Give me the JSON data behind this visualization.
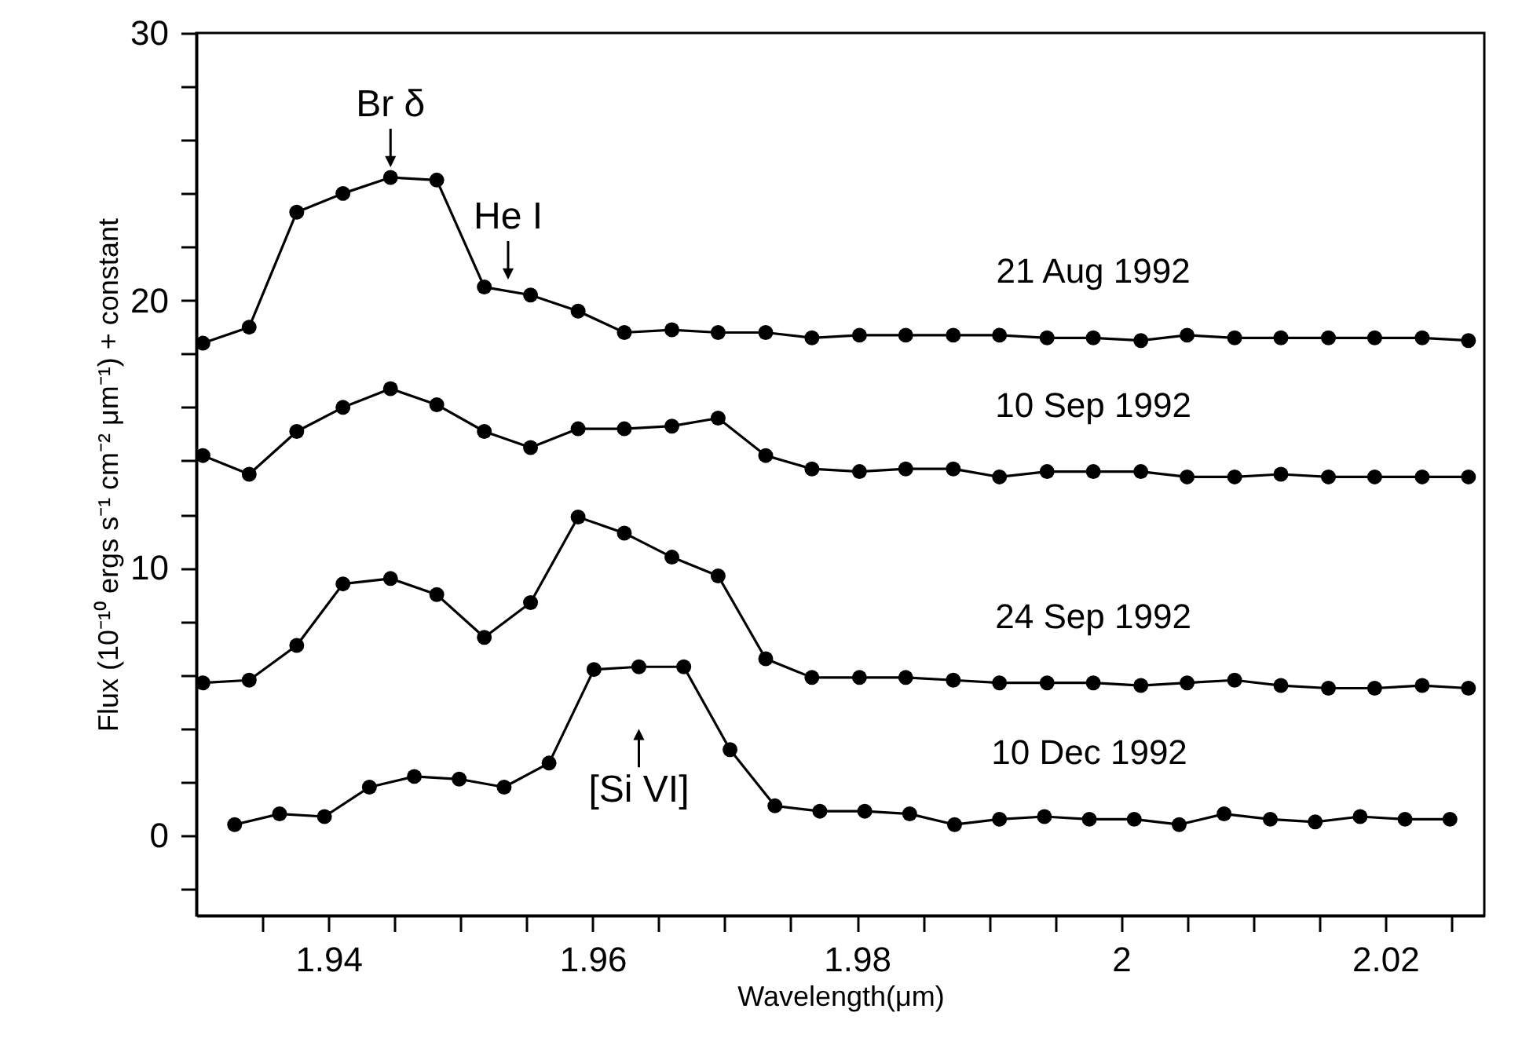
{
  "chart_data": {
    "type": "line",
    "xlabel": "Wavelength(μm)",
    "ylabel": "Flux (10⁻¹⁰ ergs s⁻¹ cm⁻² μm⁻¹) + constant",
    "x": [
      1.9305,
      1.934,
      1.9376,
      1.9411,
      1.9447,
      1.9482,
      1.9518,
      1.9553,
      1.9589,
      1.9624,
      1.966,
      1.9695,
      1.9731,
      1.9766,
      1.9802,
      1.9837,
      1.9873,
      1.9908,
      1.9944,
      1.9979,
      2.0015,
      2.005,
      2.0086,
      2.0121,
      2.0157,
      2.0192,
      2.0228,
      2.0263
    ],
    "series": [
      {
        "name": "21 Aug 1992",
        "color": "#000000",
        "values": [
          18.4,
          19.0,
          23.3,
          24.0,
          24.6,
          24.5,
          20.5,
          20.2,
          19.6,
          18.8,
          18.9,
          18.8,
          18.8,
          18.6,
          18.7,
          18.7,
          18.7,
          18.7,
          18.6,
          18.6,
          18.5,
          18.7,
          18.6,
          18.6,
          18.6,
          18.6,
          18.6,
          18.5
        ]
      },
      {
        "name": "10 Sep 1992",
        "color": "#000000",
        "values": [
          14.2,
          13.5,
          15.1,
          16.0,
          16.7,
          16.1,
          15.1,
          14.5,
          15.2,
          15.2,
          15.3,
          15.6,
          14.2,
          13.7,
          13.6,
          13.7,
          13.7,
          13.4,
          13.6,
          13.6,
          13.6,
          13.4,
          13.4,
          13.5,
          13.4,
          13.4,
          13.4,
          13.4
        ]
      },
      {
        "name": "24 Sep 1992",
        "color": "#000000",
        "values": [
          5.7,
          5.8,
          7.1,
          9.4,
          9.6,
          9.0,
          7.4,
          8.7,
          11.9,
          11.3,
          10.4,
          9.7,
          6.6,
          5.9,
          5.9,
          5.9,
          5.8,
          5.7,
          5.7,
          5.7,
          5.6,
          5.7,
          5.8,
          5.6,
          5.5,
          5.5,
          5.6,
          5.5
        ]
      },
      {
        "name": "10 Dec 1992",
        "color": "#000000",
        "x": [
          1.9329,
          1.9363,
          1.9397,
          1.9431,
          1.9465,
          1.9499,
          1.9533,
          1.9567,
          1.9601,
          1.9635,
          1.9669,
          1.9704,
          1.9738,
          1.9772,
          1.9806,
          1.984,
          1.9874,
          1.9908,
          1.9942,
          1.9976,
          2.001,
          2.0044,
          2.0078,
          2.0113,
          2.0147,
          2.0181,
          2.0215,
          2.0249
        ],
        "values": [
          0.4,
          0.8,
          0.7,
          1.8,
          2.2,
          2.1,
          1.8,
          2.7,
          6.2,
          6.3,
          6.3,
          3.2,
          1.1,
          0.9,
          0.9,
          0.8,
          0.4,
          0.6,
          0.7,
          0.6,
          0.6,
          0.4,
          0.8,
          0.6,
          0.5,
          0.7,
          0.6,
          0.6
        ]
      }
    ],
    "annotations": [
      {
        "text": "Br δ",
        "x": 1.9447,
        "y": 24.6
      },
      {
        "text": "He I",
        "x": 1.9536,
        "y": 20.4
      },
      {
        "text": "[Si VI]",
        "x": 1.9635,
        "y": 6.3
      }
    ],
    "xlim": [
      1.93,
      2.0275
    ],
    "xticks": [
      {
        "value": 1.935,
        "label": null
      },
      1.94,
      {
        "value": 1.945,
        "label": null
      },
      {
        "value": 1.95,
        "label": null
      },
      {
        "value": 1.955,
        "label": null
      },
      1.96,
      {
        "value": 1.965,
        "label": null
      },
      {
        "value": 1.97,
        "label": null
      },
      {
        "value": 1.975,
        "label": null
      },
      1.98,
      {
        "value": 1.985,
        "label": null
      },
      {
        "value": 1.99,
        "label": null
      },
      {
        "value": 1.995,
        "label": null
      },
      2,
      {
        "value": 2.005,
        "label": null
      },
      {
        "value": 2.01,
        "label": null
      },
      {
        "value": 2.015,
        "label": null
      },
      2.02,
      {
        "value": 2.025,
        "label": null
      }
    ],
    "ylim": [
      -3,
      30
    ],
    "yticks": [
      {
        "value": -2,
        "label": null
      },
      0,
      {
        "value": 2,
        "label": null
      },
      {
        "value": 4,
        "label": null
      },
      {
        "value": 6,
        "label": null
      },
      {
        "value": 8,
        "label": null
      },
      10,
      {
        "value": 12,
        "label": null
      },
      {
        "value": 14,
        "label": null
      },
      {
        "value": 16,
        "label": null
      },
      {
        "value": 18,
        "label": null
      },
      20,
      {
        "value": 22,
        "label": null
      },
      {
        "value": 24,
        "label": null
      },
      {
        "value": 26,
        "label": null
      },
      {
        "value": 28,
        "label": null
      },
      30
    ],
    "legend": false,
    "marker": "circle",
    "line_style": "solid"
  }
}
